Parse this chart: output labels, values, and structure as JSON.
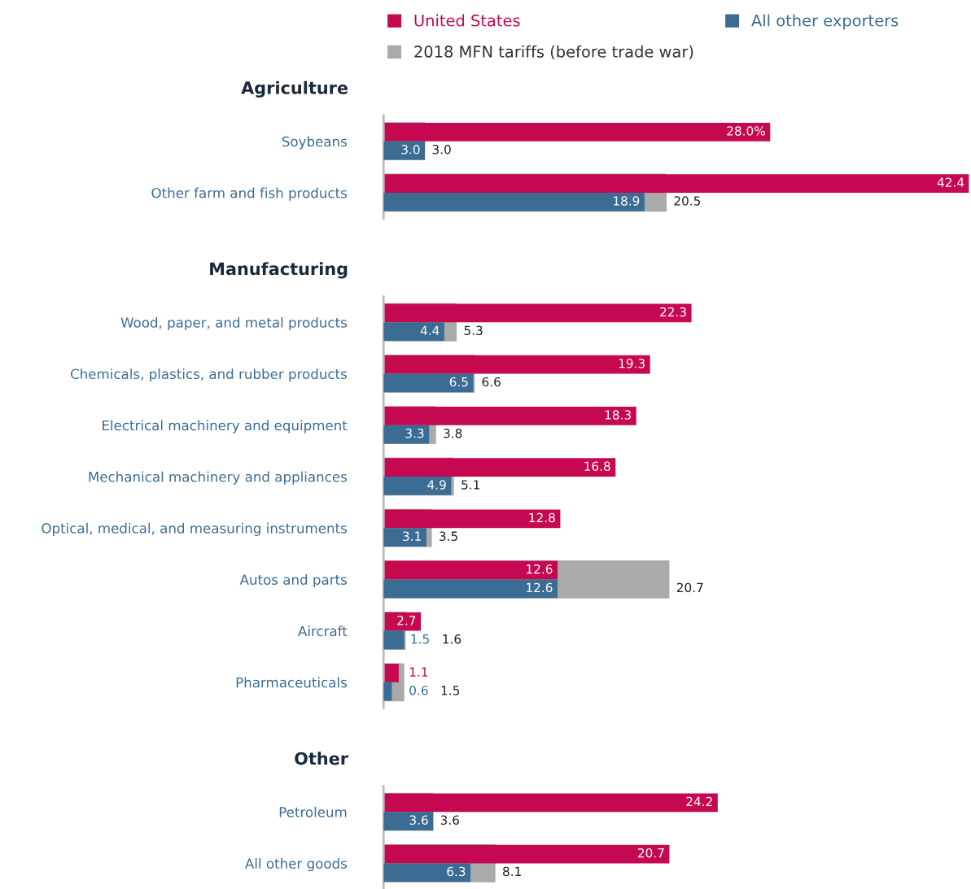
{
  "chart_data": [
    {
      "type": "bar",
      "orientation": "horizontal",
      "title": "Agriculture",
      "legend": "top",
      "data_labels": true,
      "categories": [
        "Soybeans",
        "Other farm and fish products"
      ],
      "series": [
        {
          "name": "2018 MFN tariffs (before trade war)",
          "color": "#aaaaaa",
          "values": [
            3.0,
            20.5
          ],
          "value_labels": [
            "3.0",
            "20.5"
          ]
        },
        {
          "name": "United States",
          "color": "#c5084f",
          "values": [
            28.0,
            42.4
          ],
          "value_labels": [
            "28.0%",
            "42.4"
          ]
        },
        {
          "name": "All other exporters",
          "color": "#3b6c94",
          "values": [
            3.0,
            18.9
          ],
          "value_labels": [
            "3.0",
            "18.9"
          ]
        }
      ]
    },
    {
      "type": "bar",
      "orientation": "horizontal",
      "title": "Manufacturing",
      "data_labels": true,
      "categories": [
        "Wood, paper, and metal products",
        "Chemicals, plastics, and rubber products",
        "Electrical machinery and equipment",
        "Mechanical machinery and appliances",
        "Optical, medical, and measuring instruments",
        "Autos and parts",
        "Aircraft",
        "Pharmaceuticals"
      ],
      "series": [
        {
          "color": "#aaaaaa",
          "values": [
            5.3,
            6.6,
            3.8,
            5.1,
            3.5,
            20.7,
            1.6,
            1.5
          ]
        },
        {
          "color": "#c5084f",
          "values": [
            22.3,
            19.3,
            18.3,
            16.8,
            12.8,
            12.6,
            2.7,
            1.1
          ]
        },
        {
          "color": "#3b6c94",
          "values": [
            4.4,
            6.5,
            3.3,
            4.9,
            3.1,
            12.6,
            1.5,
            0.6
          ]
        }
      ]
    },
    {
      "type": "bar",
      "orientation": "horizontal",
      "title": "Other",
      "data_labels": true,
      "categories": [
        "Petroleum",
        "All other goods"
      ],
      "series": [
        {
          "color": "#aaaaaa",
          "values": [
            3.6,
            8.1
          ]
        },
        {
          "color": "#c5084f",
          "values": [
            24.2,
            20.7
          ]
        },
        {
          "color": "#3b6c94",
          "values": [
            3.6,
            6.3
          ]
        }
      ]
    }
  ]
}
